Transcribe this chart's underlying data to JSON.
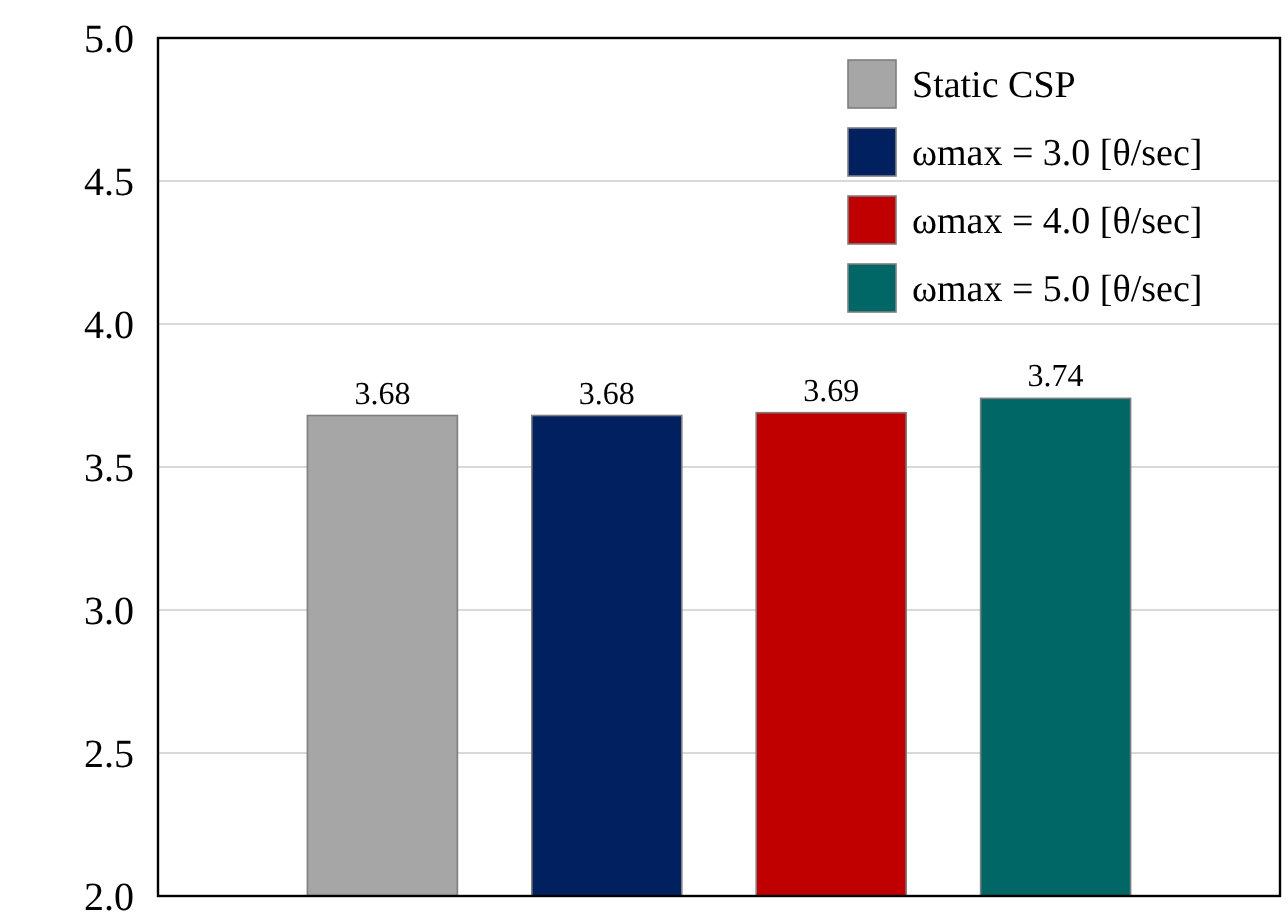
{
  "chart_data": {
    "type": "bar",
    "categories": [
      null,
      null,
      null,
      null
    ],
    "series": [
      {
        "name": "Static CSP",
        "color": "#a6a6a6",
        "values": [
          3.68,
          null,
          null,
          null
        ]
      },
      {
        "name": "ωmax = 3.0 [θ/sec]",
        "color": "#002060",
        "values": [
          null,
          3.68,
          null,
          null
        ]
      },
      {
        "name": "ωmax = 4.0 [θ/sec]",
        "color": "#c00000",
        "values": [
          null,
          null,
          3.69,
          null
        ]
      },
      {
        "name": "ωmax = 5.0 [θ/sec]",
        "color": "#006666",
        "values": [
          null,
          null,
          null,
          3.74
        ]
      }
    ],
    "ylim": [
      2,
      5
    ],
    "yticks": [
      {
        "value": 2,
        "label": "2.0"
      },
      2.5,
      {
        "value": 3,
        "label": "3.0"
      },
      3.5,
      {
        "value": 4,
        "label": "4.0"
      },
      4.5,
      {
        "value": 5,
        "label": "5.0"
      }
    ],
    "grid": "y",
    "legend": "top right",
    "data_labels": true
  }
}
